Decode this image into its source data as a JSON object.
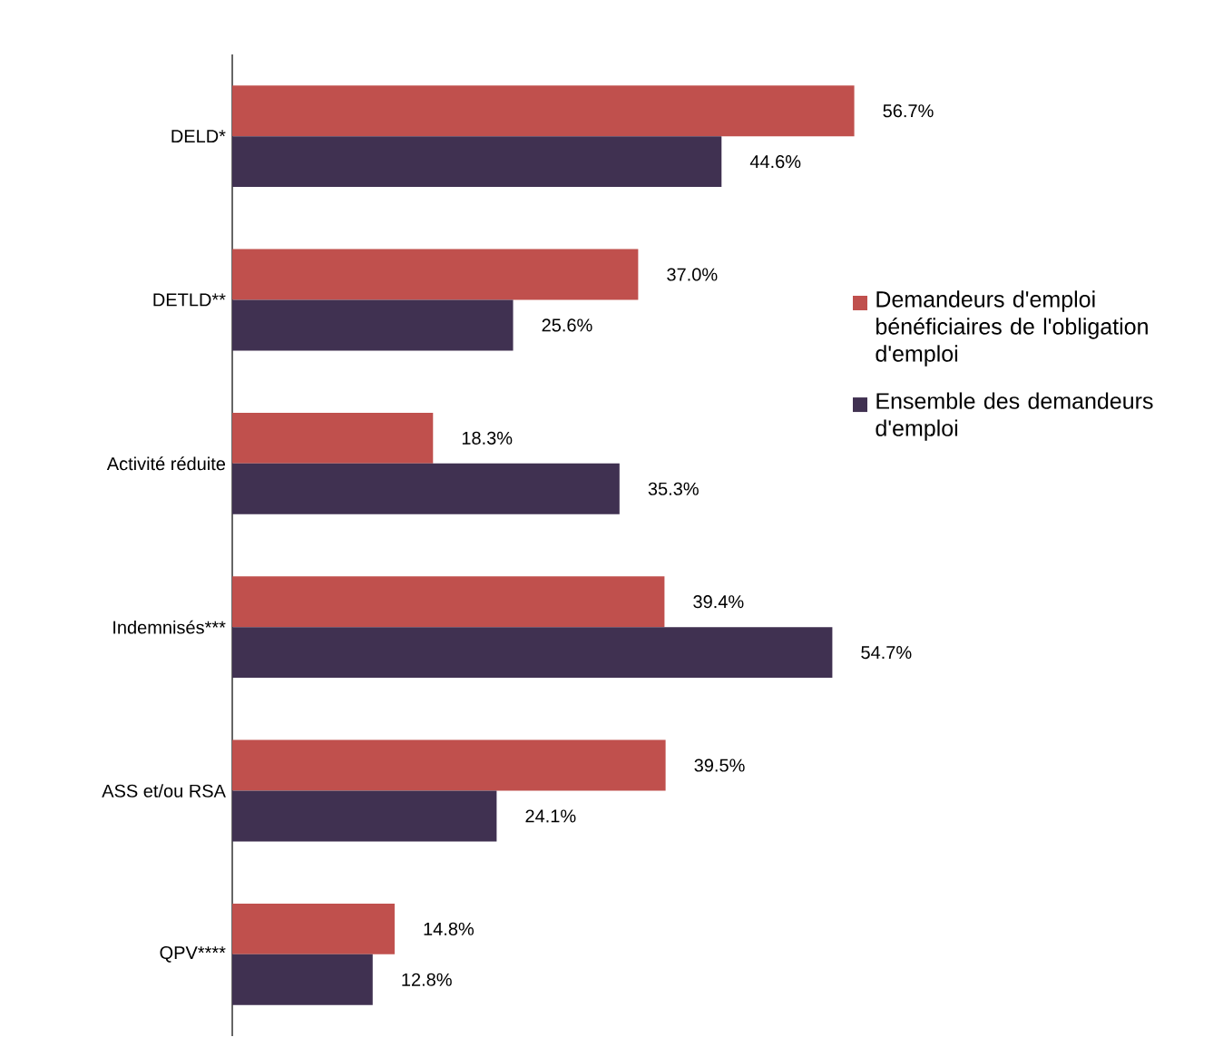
{
  "chart_data": {
    "type": "bar",
    "orientation": "horizontal",
    "categories": [
      "DELD*",
      "DETLD**",
      "Activité réduite",
      "Indemnisés***",
      "ASS et/ou RSA",
      "QPV****"
    ],
    "series": [
      {
        "name": "Demandeurs d'emploi bénéficiaires de l'obligation d'emploi",
        "color": "#c0504d",
        "values": [
          56.7,
          37.0,
          18.3,
          39.4,
          39.5,
          14.8
        ],
        "value_labels": [
          "56.7%",
          "37.0%",
          "18.3%",
          "39.4%",
          "39.5%",
          "14.8%"
        ]
      },
      {
        "name": "Ensemble des demandeurs d'emploi",
        "color": "#403151",
        "values": [
          44.6,
          25.6,
          35.3,
          54.7,
          24.1,
          12.8
        ],
        "value_labels": [
          "44.6%",
          "25.6%",
          "35.3%",
          "54.7%",
          "24.1%",
          "12.8%"
        ]
      }
    ],
    "legend": "right"
  }
}
